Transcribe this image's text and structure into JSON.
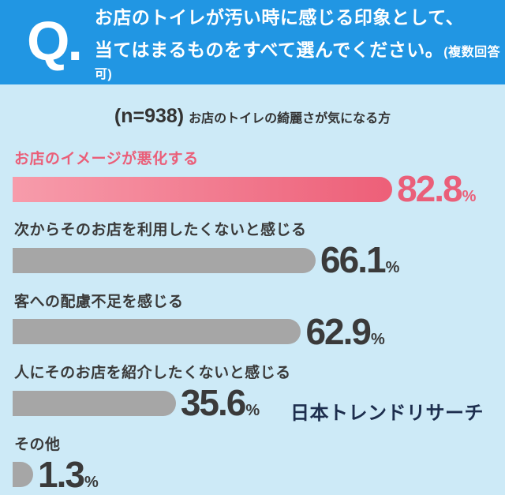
{
  "header": {
    "q_mark": "Q.",
    "line1": "お店のトイレが汚い時に感じる印象として、",
    "line2": "当てはまるものをすべて選んでください。",
    "line2_note": "(複数回答可)"
  },
  "subtitle": {
    "sample_size": "(n=938)",
    "description": "お店のトイレの綺麗さが気になる方"
  },
  "chart_data": {
    "type": "bar",
    "orientation": "horizontal",
    "title": "お店のトイレが汚い時に感じる印象として、当てはまるものをすべて選んでください。(複数回答可)",
    "subtitle": "(n=938) お店のトイレの綺麗さが気になる方",
    "categories": [
      "お店のイメージが悪化する",
      "次からそのお店を利用したくないと感じる",
      "客への配慮不足を感じる",
      "人にそのお店を紹介したくないと感じる",
      "その他"
    ],
    "values": [
      82.8,
      66.1,
      62.9,
      35.6,
      1.3
    ],
    "value_suffix": "%",
    "xlim": [
      0,
      100
    ],
    "grid": false,
    "highlight_index": 0
  },
  "colors": {
    "header_bg": "#2196e3",
    "body_bg": "#cdeaf7",
    "accent_pink": "#ea5f79",
    "bar_gradient_start": "#f79cab",
    "bar_gradient_end": "#ed5f78",
    "bar_gray": "#a6a6a6",
    "text_dark": "#3a3a3a",
    "logo_navy": "#1d2e4e"
  },
  "footer": {
    "logo_text": "日本トレンドリサーチ"
  }
}
